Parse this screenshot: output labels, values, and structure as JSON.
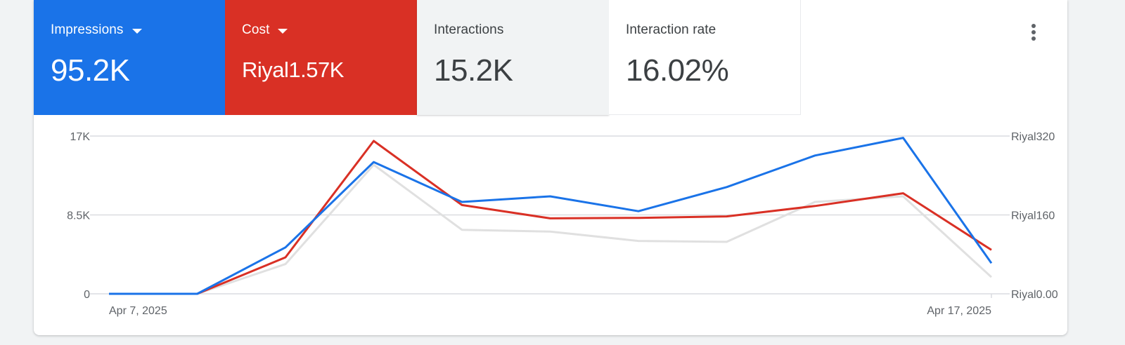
{
  "metrics": [
    {
      "label": "Impressions",
      "value": "95.2K",
      "has_dropdown": true,
      "color": "#1a73e8"
    },
    {
      "label": "Cost",
      "value": "Riyal1.57K",
      "has_dropdown": true,
      "color": "#d93025"
    },
    {
      "label": "Interactions",
      "value": "15.2K",
      "has_dropdown": false,
      "color": "#f1f3f4"
    },
    {
      "label": "Interaction rate",
      "value": "16.02%",
      "has_dropdown": false,
      "color": "#ffffff"
    }
  ],
  "menu": {
    "icon": "more-vert-icon"
  },
  "chart_data": {
    "type": "line",
    "x": [
      "2025-04-07",
      "2025-04-08",
      "2025-04-09",
      "2025-04-10",
      "2025-04-11",
      "2025-04-12",
      "2025-04-13",
      "2025-04-14",
      "2025-04-15",
      "2025-04-16",
      "2025-04-17"
    ],
    "x_tick_labels": [
      "Apr 7, 2025",
      "Apr 17, 2025"
    ],
    "y_left": {
      "ticks": [
        "0",
        "8.5K",
        "17K"
      ],
      "range": [
        0,
        17000
      ]
    },
    "y_right": {
      "ticks": [
        "Riyal0.00",
        "Riyal160",
        "Riyal320"
      ],
      "range": [
        0,
        320
      ]
    },
    "grid": true,
    "series": [
      {
        "axis": "left",
        "color": "#1a73e8",
        "values": [
          0,
          0,
          5000,
          14200,
          9900,
          10500,
          8900,
          11500,
          14900,
          16800,
          3300
        ]
      },
      {
        "axis": "right",
        "color": "#d93025",
        "values": [
          0,
          0,
          74,
          310,
          180,
          153,
          154,
          157,
          178,
          204,
          89
        ]
      },
      {
        "axis": "left",
        "color": "#e0e0e0",
        "values": [
          0,
          0,
          3200,
          13900,
          6900,
          6700,
          5700,
          5600,
          9900,
          10500,
          1800
        ]
      }
    ]
  }
}
